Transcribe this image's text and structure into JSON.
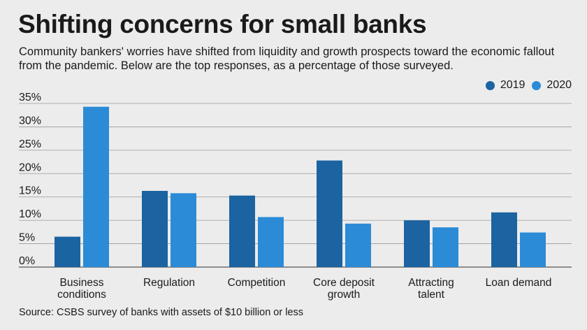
{
  "title": "Shifting concerns for small banks",
  "subtitle": "Community bankers' worries have shifted from liquidity and growth prospects toward the economic fallout from the pandemic. Below are the top responses, as a percentage of those surveyed.",
  "source": "Source: CSBS survey of banks with assets of $10 billion or less",
  "colors": {
    "2019": "#1b63a1",
    "2020": "#2b8bd6"
  },
  "chart_data": {
    "type": "bar",
    "categories": [
      [
        "Business",
        "conditions"
      ],
      [
        "Regulation"
      ],
      [
        "Competition"
      ],
      [
        "Core deposit",
        "growth"
      ],
      [
        "Attracting",
        "talent"
      ],
      [
        "Loan demand"
      ]
    ],
    "series": [
      {
        "name": "2019",
        "values": [
          6.5,
          16.3,
          15.3,
          22.8,
          10.0,
          11.7
        ]
      },
      {
        "name": "2020",
        "values": [
          34.3,
          15.8,
          10.7,
          9.3,
          8.5,
          7.4
        ]
      }
    ],
    "yticks": [
      "0%",
      "5%",
      "10%",
      "15%",
      "20%",
      "25%",
      "30%",
      "35%"
    ],
    "ylim": [
      0,
      35
    ],
    "grid": true,
    "legend_position": "top-right"
  }
}
